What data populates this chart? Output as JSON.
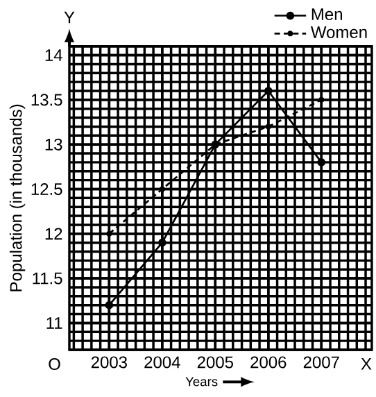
{
  "chart_data": {
    "type": "line",
    "xlabel": "Years",
    "ylabel": "Population (in thousands)",
    "categories": [
      "2003",
      "2004",
      "2005",
      "2006",
      "2007"
    ],
    "series": [
      {
        "name": "Men",
        "color": "#000000",
        "line_style": "solid",
        "values": [
          11.2,
          11.9,
          13.0,
          13.6,
          12.8
        ]
      },
      {
        "name": "Women",
        "color": "#000000",
        "line_style": "dashed",
        "values": [
          12.0,
          12.5,
          13.0,
          13.2,
          13.5
        ]
      }
    ],
    "ylim": [
      10.7,
      14.1
    ],
    "yticks": [
      {
        "value": 11,
        "label": "11"
      },
      {
        "value": 11.5,
        "label": "11.5"
      },
      {
        "value": 12,
        "label": "12"
      },
      {
        "value": 12.5,
        "label": "12.5"
      },
      {
        "value": 13,
        "label": "13"
      },
      {
        "value": 13.5,
        "label": "13.5"
      },
      {
        "value": 14,
        "label": "14"
      }
    ],
    "grid": true,
    "legend": "top right",
    "marker": "circle",
    "annotations": [
      "Y",
      "X",
      "O"
    ]
  }
}
